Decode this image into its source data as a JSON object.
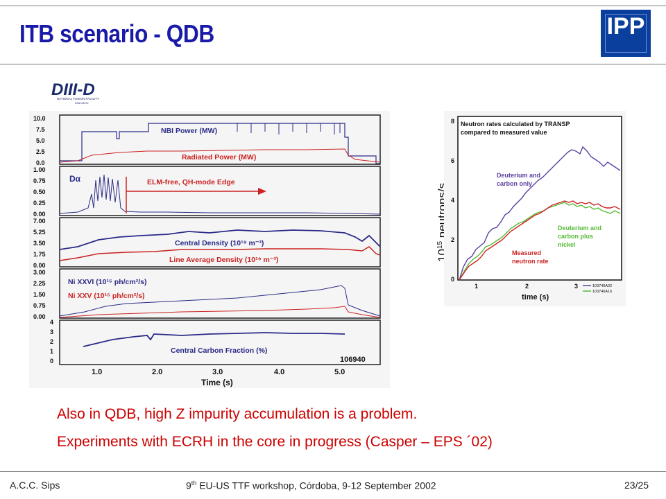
{
  "slide": {
    "title": "ITB scenario - QDB",
    "logo_text": "IPP",
    "diii_logo": {
      "main": "DIII-D",
      "sub1": "NATIONAL FUSION FACILITY",
      "sub2": "SAN DIEGO"
    },
    "bullets": [
      "Also in QDB, high Z impurity accumulation is a problem.",
      "Experiments with ECRH in the core in progress (Casper – EPS ´02)"
    ],
    "footer": {
      "author": "A.C.C. Sips",
      "event_sup": "th",
      "event_prefix": "9",
      "event_rest": " EU-US TTF workshop, Córdoba, 9-12 September 2002",
      "page": "23/25"
    },
    "colors": {
      "title": "#1a1aa8",
      "text": "#cc0000",
      "blue_trace": "#2a2a88",
      "red_trace": "#cc2222",
      "green_trace": "#55bb33",
      "purple_trace": "#5a3fa0"
    }
  },
  "left_figure": {
    "panels": [
      {
        "yticks": [
          "10.0",
          "7.5",
          "5.0",
          "2.5",
          "0.0"
        ],
        "labels": [
          "NBI Power (MW)",
          "Radiated Power (MW)"
        ]
      },
      {
        "yticks": [
          "1.00",
          "0.75",
          "0.50",
          "0.25",
          "0.00"
        ],
        "labels": [
          "Dα",
          "ELM-free, QH-mode Edge"
        ]
      },
      {
        "yticks": [
          "7.00",
          "5.25",
          "3.50",
          "1.75",
          "0.00"
        ],
        "labels": [
          "Central Density (10¹⁹ m⁻³)",
          "Line Average Density (10¹⁹ m⁻³)"
        ]
      },
      {
        "yticks": [
          "3.00",
          "2.25",
          "1.50",
          "0.75",
          "0.00"
        ],
        "labels": [
          "Ni XXVI (10¹⁵ ph/cm²/s)",
          "Ni XXV (10¹⁵ ph/cm²/s)"
        ]
      },
      {
        "yticks": [
          "4",
          "3",
          "2",
          "1",
          "0"
        ],
        "labels": [
          "Central Carbon Fraction (%)",
          "106940"
        ]
      }
    ],
    "xticks": [
      "1.0",
      "2.0",
      "3.0",
      "4.0",
      "5.0"
    ],
    "xlabel": "Time (s)"
  },
  "right_figure": {
    "title_lines": [
      "Neutron rates calculated by TRANSP",
      "compared to measured value"
    ],
    "ylabel_base": "10",
    "ylabel_exp": "15",
    "ylabel_rest": " neutrons/s",
    "yticks": [
      "8",
      "6",
      "4",
      "2",
      "0"
    ],
    "xticks": [
      "1",
      "2",
      "3"
    ],
    "xlabel": "time (s)",
    "annotations": [
      "Deuterium and",
      "carbon only",
      "Deuterium and",
      "carbon plus",
      "nickel",
      "Measured",
      "neutron rate"
    ],
    "legend": [
      "103740A02",
      "103740A16"
    ]
  }
}
